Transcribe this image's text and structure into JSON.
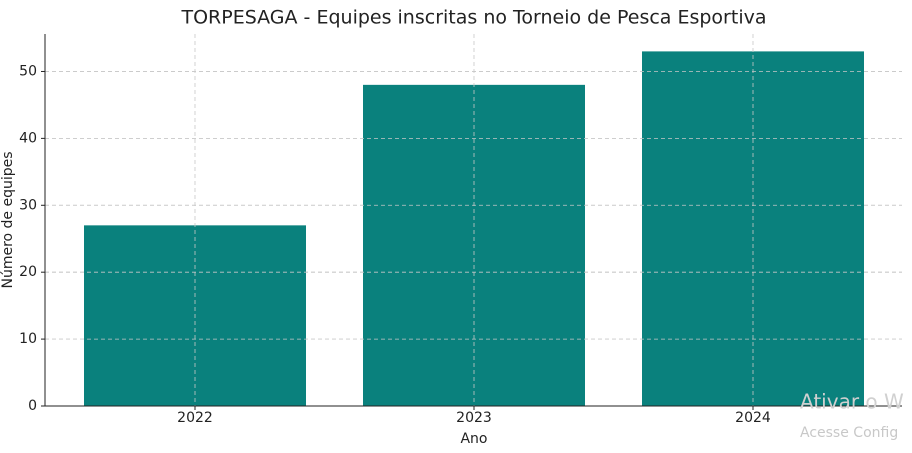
{
  "chart_data": {
    "type": "bar",
    "title": "TORPESAGA - Equipes inscritas no Torneio de Pesca Esportiva",
    "x_label": "Ano",
    "y_label": "Número de equipes",
    "categories": [
      "2022",
      "2023",
      "2024"
    ],
    "values": [
      27,
      48,
      53
    ],
    "color": "#0a817d",
    "ylim": [
      0,
      55.6
    ],
    "yticks": [
      0,
      10,
      20,
      30,
      40,
      50
    ],
    "grid": true
  },
  "watermark": {
    "line1": "Ativar o W",
    "line2": "Acesse Config"
  }
}
